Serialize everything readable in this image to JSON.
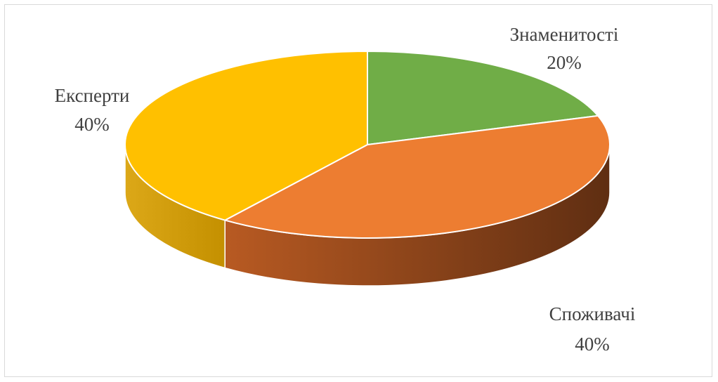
{
  "chart_data": {
    "type": "pie",
    "style": "3d",
    "title": "",
    "categories": [
      "Знаменитості",
      "Споживачі",
      "Експерти"
    ],
    "values": [
      20,
      40,
      40
    ],
    "value_labels": [
      "20%",
      "40%",
      "40%"
    ],
    "colors": [
      "#70ad47",
      "#ed7d31",
      "#ffc000"
    ],
    "side_colors": {
      "Знаменитості": [
        "#5a8a39",
        "#3f6128"
      ],
      "Споживачі": [
        "#b85a22",
        "#5f2e12"
      ],
      "Експерти": [
        "#dca818",
        "#c49000"
      ]
    },
    "legend": "none",
    "data_labels": "outside, category name and percentage"
  }
}
